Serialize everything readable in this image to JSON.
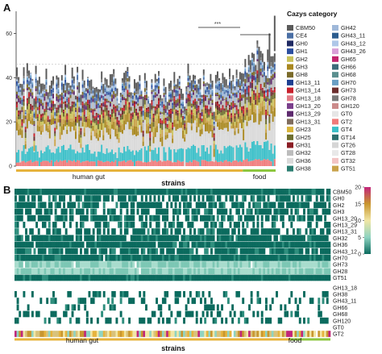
{
  "chart_data": [
    {
      "type": "bar",
      "stacked": true,
      "panel": "A",
      "xlabel": "strains",
      "ylim": [
        0,
        70
      ],
      "yticks": [
        0,
        20,
        40,
        60
      ],
      "grid": false,
      "n_strains": 150,
      "groups": [
        {
          "label": "human gut",
          "start": 0,
          "end": 131,
          "color": "#e6b33c"
        },
        {
          "label": "food",
          "start": 131,
          "end": 150,
          "color": "#8dc63f"
        }
      ],
      "significance": "***",
      "legend": {
        "title": "Cazys category",
        "placement": "right",
        "categories": [
          {
            "name": "CBM50",
            "color": "#5a5a5a"
          },
          {
            "name": "CE4",
            "color": "#4a6fa5"
          },
          {
            "name": "GH0",
            "color": "#1f2a63"
          },
          {
            "name": "GH1",
            "color": "#2c4fa0"
          },
          {
            "name": "GH2",
            "color": "#c9c25a"
          },
          {
            "name": "GH3",
            "color": "#a8871f"
          },
          {
            "name": "GH8",
            "color": "#7a6a2a"
          },
          {
            "name": "GH13_11",
            "color": "#1e3f91"
          },
          {
            "name": "GH13_14",
            "color": "#c8202c"
          },
          {
            "name": "GH13_18",
            "color": "#e27c86"
          },
          {
            "name": "GH13_20",
            "color": "#7b3f8c"
          },
          {
            "name": "GH13_29",
            "color": "#5e2a6e"
          },
          {
            "name": "GH13_31",
            "color": "#7f6c5d"
          },
          {
            "name": "GH23",
            "color": "#d8b43a"
          },
          {
            "name": "GH25",
            "color": "#6d6e2e"
          },
          {
            "name": "GH31",
            "color": "#8b1d24"
          },
          {
            "name": "GH32",
            "color": "#bcbcbc"
          },
          {
            "name": "GH36",
            "color": "#d9d9d9"
          },
          {
            "name": "GH38",
            "color": "#2a7d70"
          },
          {
            "name": "GH42",
            "color": "#9fb8d9"
          },
          {
            "name": "GH43_11",
            "color": "#2c5d8f"
          },
          {
            "name": "GH43_12",
            "color": "#aec7e8"
          },
          {
            "name": "GH43_26",
            "color": "#d9a0d8"
          },
          {
            "name": "GH65",
            "color": "#c2256e"
          },
          {
            "name": "GH66",
            "color": "#3d6b7a"
          },
          {
            "name": "GH68",
            "color": "#5a8f8f"
          },
          {
            "name": "GH70",
            "color": "#6a9fc4"
          },
          {
            "name": "GH73",
            "color": "#6b2d2d"
          },
          {
            "name": "GH78",
            "color": "#7a7a7a"
          },
          {
            "name": "GH120",
            "color": "#cc8b8b"
          },
          {
            "name": "GT0",
            "color": "#e6e6e6"
          },
          {
            "name": "GT2",
            "color": "#f07a7a"
          },
          {
            "name": "GT4",
            "color": "#3bbfc8"
          },
          {
            "name": "GT14",
            "color": "#2d6f6f"
          },
          {
            "name": "GT26",
            "color": "#d6d6d6"
          },
          {
            "name": "GT28",
            "color": "#e8e8e8"
          },
          {
            "name": "GT32",
            "color": "#f2c4c4"
          },
          {
            "name": "GT51",
            "color": "#c9a24a"
          }
        ]
      }
    },
    {
      "type": "heatmap",
      "panel": "B",
      "xlabel": "strains",
      "n_strains": 150,
      "groups": [
        {
          "label": "human gut",
          "start": 0,
          "end": 131
        },
        {
          "label": "food",
          "start": 131,
          "end": 150
        }
      ],
      "rows_block1": [
        "CBM50",
        "GH0",
        "GH2",
        "GH3",
        "GH13_20",
        "GH13_29",
        "GH13_31",
        "GH32",
        "GH36",
        "GH43_12",
        "GH70",
        "GH73",
        "GH28",
        "GT51"
      ],
      "rows_block2": [
        "GH13_18",
        "GH38",
        "GH43_11",
        "GH66",
        "GH68",
        "GH120",
        "GT0",
        "GT2"
      ],
      "colorbar": {
        "ticks": [
          0,
          5,
          10,
          15,
          20
        ],
        "range": [
          0,
          20
        ],
        "colors": [
          "#0b6b5e",
          "#8fd3c1",
          "#f1e6a4",
          "#c8962e",
          "#c2257a"
        ]
      }
    }
  ]
}
